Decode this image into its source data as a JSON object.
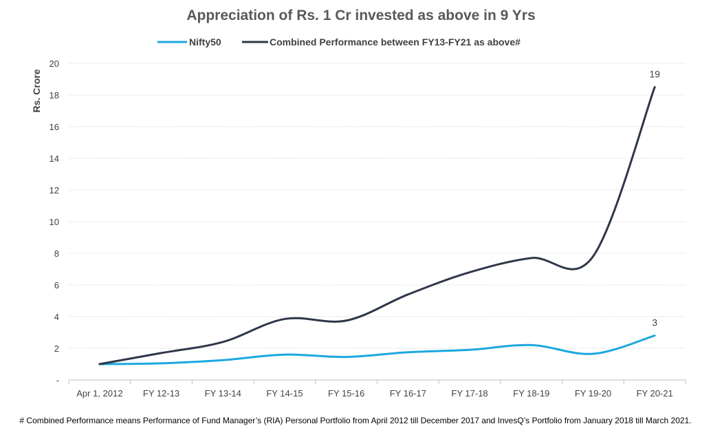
{
  "chart_data": {
    "type": "line",
    "title": "Appreciation of Rs. 1 Cr invested as above in 9 Yrs",
    "xlabel": "",
    "ylabel": "Rs. Crore",
    "ylim": [
      0,
      20
    ],
    "yticks": [
      0,
      2,
      4,
      6,
      8,
      10,
      12,
      14,
      16,
      18,
      20
    ],
    "ytick_labels": [
      "-",
      "2",
      "4",
      "6",
      "8",
      "10",
      "12",
      "14",
      "16",
      "18",
      "20"
    ],
    "categories": [
      "Apr 1, 2012",
      "FY 12-13",
      "FY 13-14",
      "FY 14-15",
      "FY 15-16",
      "FY 16-17",
      "FY 17-18",
      "FY 18-19",
      "FY 19-20",
      "FY 20-21"
    ],
    "series": [
      {
        "name": "Nifty50",
        "color": "#1ba7e1",
        "values": [
          1.0,
          1.05,
          1.25,
          1.6,
          1.45,
          1.75,
          1.9,
          2.2,
          1.65,
          2.8
        ],
        "end_label": "3"
      },
      {
        "name": "Combined Performance between FY13-FY21 as above#",
        "color": "#2e3648",
        "values": [
          1.0,
          1.7,
          2.4,
          3.85,
          3.75,
          5.4,
          6.8,
          7.7,
          7.8,
          18.5
        ],
        "end_label": "19"
      }
    ],
    "grid": true,
    "legend": "top-center"
  },
  "footnote": "# Combined Performance means Performance of Fund Manager’s (RIA) Personal Portfolio from April 2012 till December 2017 and InvesQ’s Portfolio from January 2018 till March 2021."
}
